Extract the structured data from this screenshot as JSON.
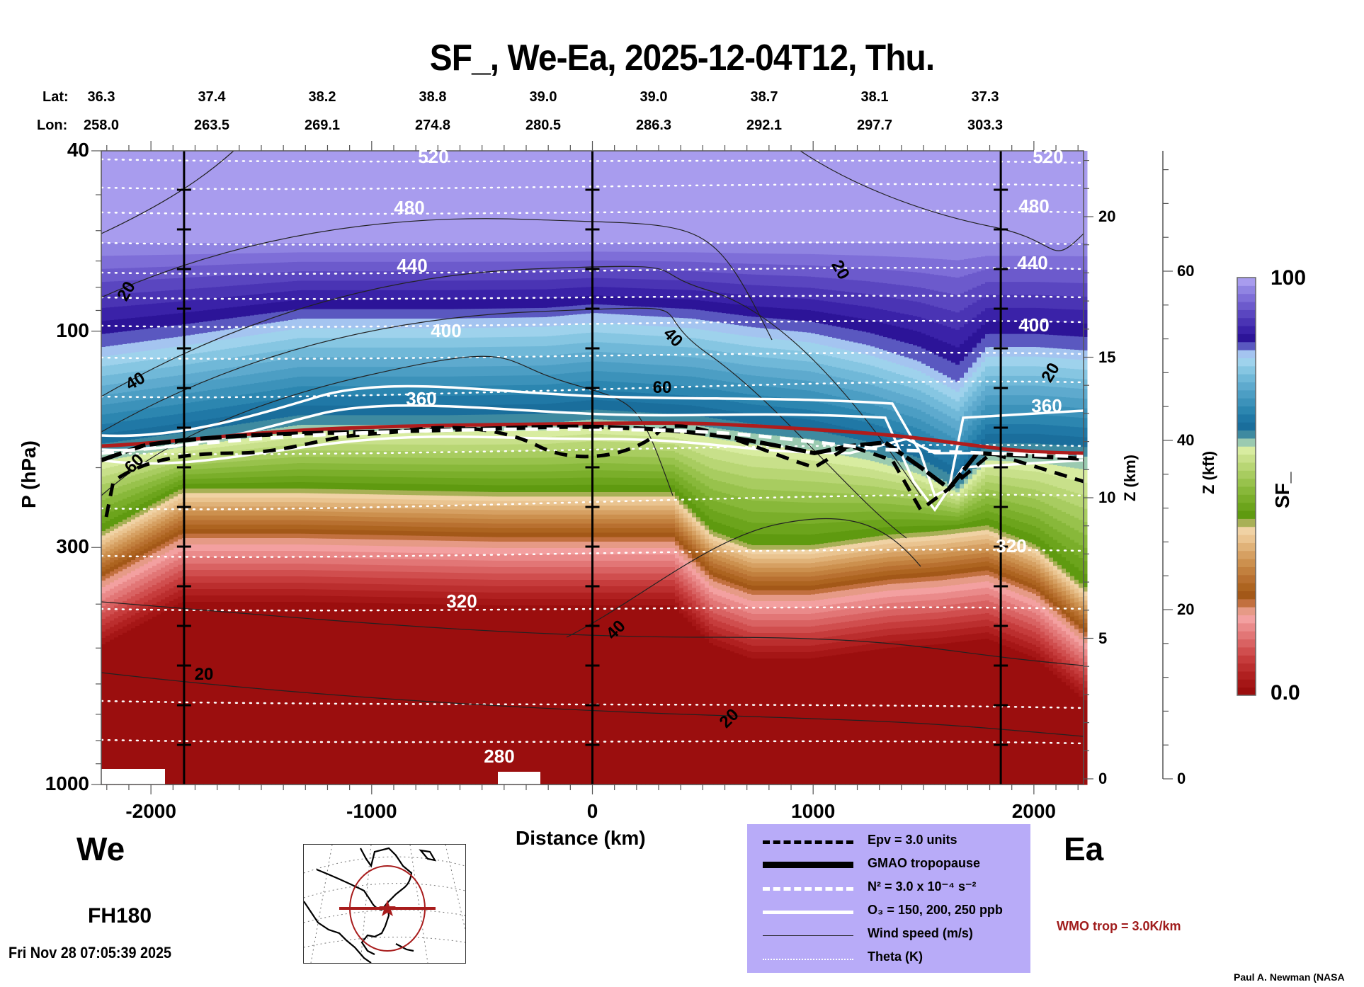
{
  "chart_data": {
    "type": "heatmap",
    "title": "SF_, We-Ea, 2025-12-04T12, Thu.",
    "subtitle_rows": {
      "lat_label": "Lat:",
      "lon_label": "Lon:",
      "lat": [
        "36.3",
        "37.4",
        "38.2",
        "38.8",
        "39.0",
        "39.0",
        "38.7",
        "38.1",
        "37.3"
      ],
      "lon": [
        "258.0",
        "263.5",
        "269.1",
        "274.8",
        "280.5",
        "286.3",
        "292.1",
        "297.7",
        "303.3"
      ]
    },
    "xlabel": "Distance (km)",
    "ylabel": "P (hPa)",
    "x_ticks": [
      "-2000",
      "-1000",
      "0",
      "1000",
      "2000"
    ],
    "x_tick_values": [
      -2000,
      -1000,
      0,
      1000,
      2000
    ],
    "xlim": [
      -2225,
      2225
    ],
    "y_ticks": [
      "40",
      "100",
      "300",
      "1000"
    ],
    "y_tick_values": [
      40,
      100,
      300,
      1000
    ],
    "ylim": [
      1000,
      40
    ],
    "y_scale": "log",
    "right_axis_km": {
      "label": "Z (km)",
      "ticks": [
        "0",
        "5",
        "10",
        "15",
        "20"
      ],
      "values": [
        0,
        5,
        10,
        15,
        20
      ]
    },
    "right_axis_kft": {
      "label": "Z (kft)",
      "ticks": [
        "0",
        "20",
        "40",
        "60"
      ],
      "values": [
        0,
        20,
        40,
        60
      ]
    },
    "vertical_markers_km": [
      -1850,
      0,
      1850
    ],
    "colorbar": {
      "label": "SF_",
      "min_label": "0.0",
      "max_label": "100",
      "range": [
        0,
        100
      ],
      "colors_bottom_to_top": [
        "#9b0e0e",
        "#a51616",
        "#b02020",
        "#bb2e2e",
        "#c63c3c",
        "#d04e4e",
        "#d96262",
        "#e27676",
        "#ea8a8a",
        "#f3a0a0",
        "#e69a86",
        "#c2703f",
        "#a35818",
        "#ad6420",
        "#b87030",
        "#c2803e",
        "#cc904e",
        "#d6a062",
        "#e0b278",
        "#eac490",
        "#f0d2a4",
        "#a8b056",
        "#5f9a10",
        "#6ca41c",
        "#7aae2a",
        "#88b83a",
        "#98c24c",
        "#a8cc60",
        "#b8d674",
        "#c8e08a",
        "#d8eca0",
        "#9acab0",
        "#3e8aa0",
        "#1a6e9c",
        "#2078a6",
        "#2c86b0",
        "#3c92ba",
        "#4c9ec4",
        "#5eaace",
        "#70b8d8",
        "#86c6e2",
        "#9ed2ec",
        "#a4c4f0",
        "#5a58c0",
        "#2c1498",
        "#3a22a8",
        "#4a34b4",
        "#5a46c0",
        "#6c5acc",
        "#7e6ed8",
        "#9084e2",
        "#a89cee"
      ]
    },
    "theta_labels": [
      "520",
      "480",
      "440",
      "400",
      "360",
      "320",
      "320",
      "280"
    ],
    "wind_labels": [
      "20",
      "40",
      "60",
      "20",
      "40",
      "20",
      "20",
      "40",
      "20"
    ],
    "legend": [
      {
        "style": "dashed-black",
        "label": "Epv = 3.0 units"
      },
      {
        "style": "thick-black",
        "label": "GMAO tropopause"
      },
      {
        "style": "dashed-white",
        "label": "N² = 3.0 x 10⁻⁴ s⁻²"
      },
      {
        "style": "solid-white",
        "label": "O₃ = 150, 200, 250 ppb"
      },
      {
        "style": "thin-black",
        "label": "Wind speed (m/s)"
      },
      {
        "style": "dotted-white",
        "label": "Theta (K)"
      }
    ],
    "annotation_wmo": "WMO trop = 3.0K/km"
  },
  "labels": {
    "west": "We",
    "east": "Ea",
    "forecast_hour": "FH180",
    "timestamp": "Fri Nov 28 07:05:39 2025",
    "credit": "Paul A. Newman (NASA"
  },
  "colors": {
    "legend_bg": "#b8abf8",
    "wmo_red": "#a01c1c",
    "strat_top": "#b8abf8",
    "trop_red": "#9b0e0e"
  }
}
